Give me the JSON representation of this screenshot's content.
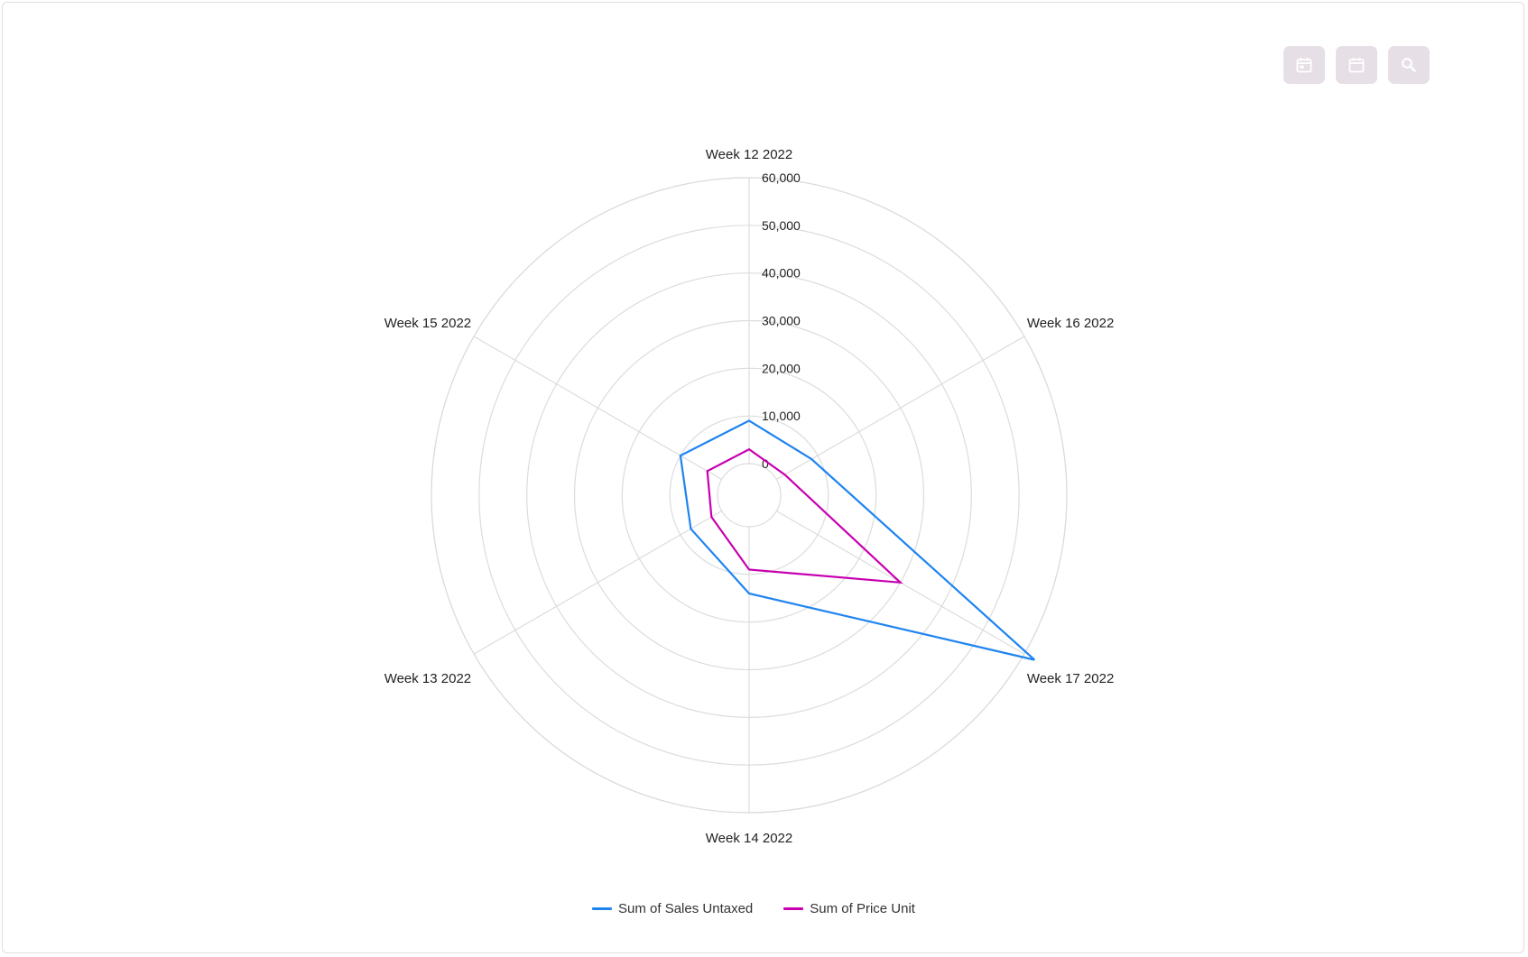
{
  "toolbar": {
    "buttons": [
      {
        "icon": "calendar-day-icon"
      },
      {
        "icon": "calendar-icon"
      },
      {
        "icon": "search-icon"
      }
    ],
    "button_color": "#e6dfe6",
    "icon_color": "#ffffff"
  },
  "chart_data": {
    "type": "radar",
    "categories": [
      "Week 12 2022",
      "Week 16 2022",
      "Week 17 2022",
      "Week 14 2022",
      "Week 13 2022",
      "Week 15 2022"
    ],
    "series": [
      {
        "name": "Sum of Sales Untaxed",
        "color": "#1f84f0",
        "values": [
          9000,
          8500,
          62500,
          14000,
          7500,
          10000
        ]
      },
      {
        "name": "Sum of Price Unit",
        "color": "#c800b0",
        "values": [
          3000,
          2000,
          30000,
          9000,
          2500,
          3500
        ]
      }
    ],
    "rlim": [
      0,
      60000
    ],
    "r_ticks": [
      "0",
      "10,000",
      "20,000",
      "30,000",
      "40,000",
      "50,000",
      "60,000"
    ],
    "grid": true,
    "grid_color": "#dcdcdc",
    "legend_position": "bottom"
  }
}
